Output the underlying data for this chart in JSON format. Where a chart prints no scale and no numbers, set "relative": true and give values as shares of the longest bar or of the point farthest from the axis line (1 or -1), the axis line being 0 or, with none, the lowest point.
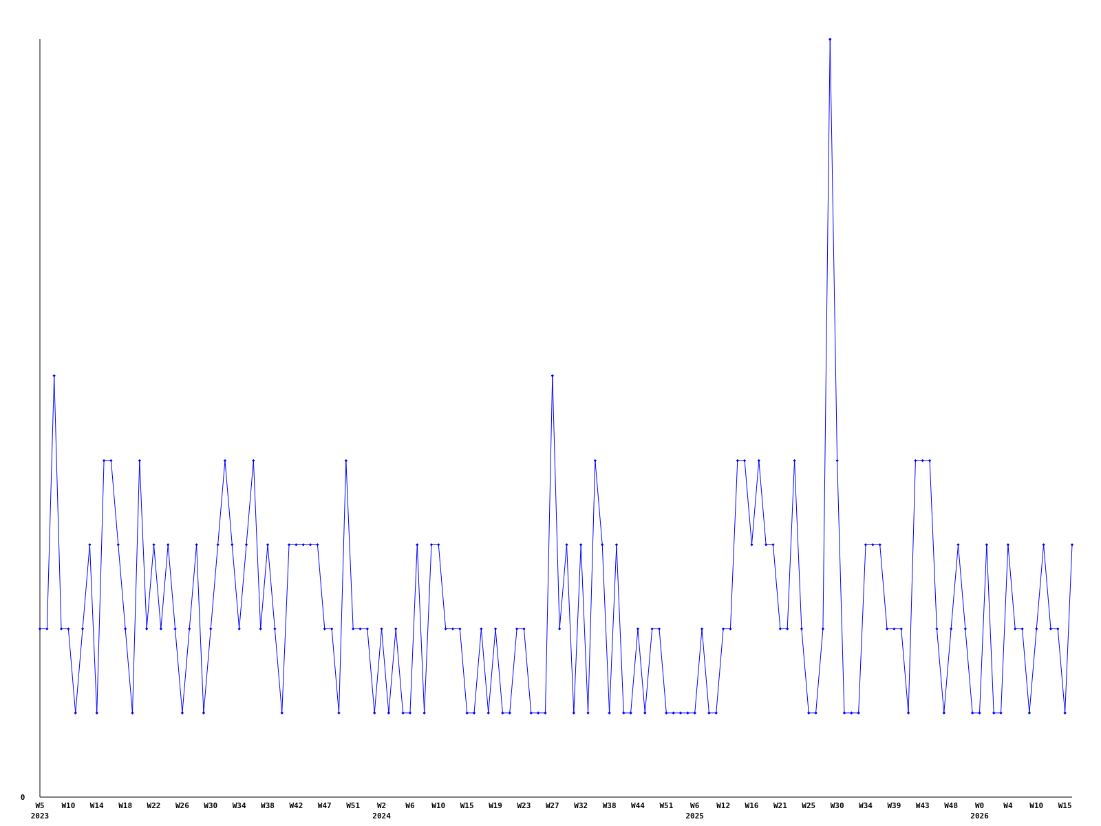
{
  "chart_data": {
    "type": "line",
    "relative": true,
    "marker": "diamond",
    "line_style": "solid",
    "categories": [
      "W5\n2023",
      null,
      null,
      null,
      "W10",
      null,
      null,
      null,
      "W14",
      null,
      null,
      null,
      "W18",
      null,
      null,
      null,
      "W22",
      null,
      null,
      null,
      "W26",
      null,
      null,
      null,
      "W30",
      null,
      null,
      null,
      "W34",
      null,
      null,
      null,
      "W38",
      null,
      null,
      null,
      "W42",
      null,
      null,
      null,
      "W47",
      null,
      null,
      null,
      "W51",
      null,
      null,
      null,
      "W2\n2024",
      null,
      null,
      null,
      "W6",
      null,
      null,
      null,
      "W10",
      null,
      null,
      null,
      "W15",
      null,
      null,
      null,
      "W19",
      null,
      null,
      null,
      "W23",
      null,
      null,
      null,
      "W27",
      null,
      null,
      null,
      "W32",
      null,
      null,
      null,
      "W38",
      null,
      null,
      null,
      "W44",
      null,
      null,
      null,
      "W51",
      null,
      null,
      null,
      "W6\n2025",
      null,
      null,
      null,
      "W12",
      null,
      null,
      null,
      "W16",
      null,
      null,
      null,
      "W21",
      null,
      null,
      null,
      "W25",
      null,
      null,
      null,
      "W30",
      null,
      null,
      null,
      "W34",
      null,
      null,
      null,
      "W39",
      null,
      null,
      null,
      "W43",
      null,
      null,
      null,
      "W48",
      null,
      null,
      null,
      "W0\n2026",
      null,
      null,
      null,
      "W4",
      null,
      null,
      null,
      "W10",
      null,
      null,
      null,
      "W15",
      null
    ],
    "series": [
      {
        "color": "#0000ff",
        "values": [
          0.222,
          0.222,
          0.556,
          0.222,
          0.222,
          0.111,
          0.222,
          0.333,
          0.111,
          0.444,
          0.444,
          0.333,
          0.222,
          0.111,
          0.444,
          0.222,
          0.333,
          0.222,
          0.333,
          0.222,
          0.111,
          0.222,
          0.333,
          0.111,
          0.222,
          0.333,
          0.444,
          0.333,
          0.222,
          0.333,
          0.444,
          0.222,
          0.333,
          0.222,
          0.111,
          0.333,
          0.333,
          0.333,
          0.333,
          0.333,
          0.222,
          0.222,
          0.111,
          0.444,
          0.222,
          0.222,
          0.222,
          0.111,
          0.222,
          0.111,
          0.222,
          0.111,
          0.111,
          0.333,
          0.111,
          0.333,
          0.333,
          0.222,
          0.222,
          0.222,
          0.111,
          0.111,
          0.222,
          0.111,
          0.222,
          0.111,
          0.111,
          0.222,
          0.222,
          0.111,
          0.111,
          0.111,
          0.556,
          0.222,
          0.333,
          0.111,
          0.333,
          0.111,
          0.444,
          0.333,
          0.111,
          0.333,
          0.111,
          0.111,
          0.222,
          0.111,
          0.222,
          0.222,
          0.111,
          0.111,
          0.111,
          0.111,
          0.111,
          0.222,
          0.111,
          0.111,
          0.222,
          0.222,
          0.444,
          0.444,
          0.333,
          0.444,
          0.333,
          0.333,
          0.222,
          0.222,
          0.444,
          0.222,
          0.111,
          0.111,
          0.222,
          1,
          0.444,
          0.111,
          0.111,
          0.111,
          0.333,
          0.333,
          0.333,
          0.222,
          0.222,
          0.222,
          0.111,
          0.444,
          0.444,
          0.444,
          0.222,
          0.111,
          0.222,
          0.333,
          0.222,
          0.111,
          0.111,
          0.333,
          0.111,
          0.111,
          0.333,
          0.222,
          0.222,
          0.111,
          0.222,
          0.333,
          0.222,
          0.222,
          0.111,
          0.333
        ]
      }
    ],
    "annotations": [
      "0"
    ]
  }
}
